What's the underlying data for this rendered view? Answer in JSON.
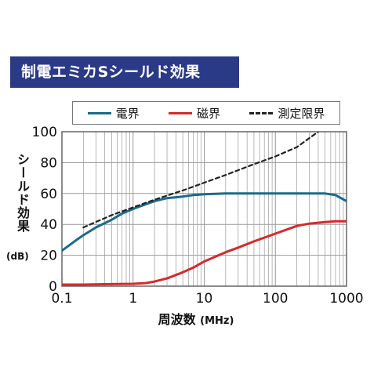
{
  "title": "制電エミカSシールド効果",
  "colors": {
    "title_bg": "#2b3a87",
    "electric": "#1b6a8a",
    "magnetic": "#d42a2a",
    "limit": "#222222"
  },
  "chart_data": {
    "type": "line",
    "xscale": "log",
    "xlim": [
      0.1,
      1000
    ],
    "ylim": [
      0,
      100
    ],
    "xlabel": "周波数",
    "xunit": "(MHz)",
    "ylabel": "シールド効果",
    "yunit": "(dB)",
    "xticks": [
      "0.1",
      "1",
      "10",
      "100",
      "1000"
    ],
    "yticks": [
      "0",
      "20",
      "40",
      "60",
      "80",
      "100"
    ],
    "legend_position": "top",
    "grid": true,
    "series": [
      {
        "name": "電界",
        "style": "solid",
        "x": [
          0.1,
          0.15,
          0.2,
          0.3,
          0.5,
          0.7,
          1,
          1.5,
          2,
          3,
          5,
          7,
          10,
          20,
          30,
          50,
          100,
          200,
          300,
          500,
          700,
          1000
        ],
        "y": [
          23,
          29,
          33,
          38,
          43,
          47,
          50,
          53,
          55,
          57,
          58,
          59,
          59.5,
          60,
          60,
          60,
          60,
          60,
          60,
          60,
          59,
          55
        ]
      },
      {
        "name": "磁界",
        "style": "solid",
        "x": [
          0.1,
          0.2,
          0.5,
          1,
          1.5,
          2,
          3,
          5,
          7,
          10,
          20,
          30,
          50,
          100,
          200,
          300,
          500,
          700,
          1000
        ],
        "y": [
          1,
          1,
          1.3,
          1.5,
          2,
          3,
          5,
          9,
          12,
          16,
          22,
          25,
          29,
          34,
          39,
          40.5,
          41.5,
          42,
          42
        ]
      },
      {
        "name": "測定限界",
        "style": "dashed",
        "x": [
          0.2,
          0.5,
          1,
          2,
          5,
          10,
          20,
          50,
          100,
          200,
          400
        ],
        "y": [
          38,
          46,
          51,
          56,
          62,
          67,
          72,
          79,
          84,
          90,
          100
        ]
      }
    ]
  }
}
